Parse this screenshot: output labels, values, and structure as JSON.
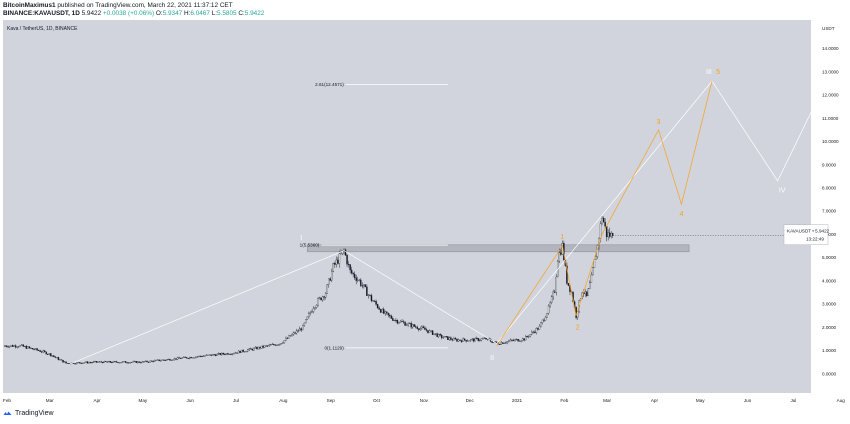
{
  "header": {
    "line1_user": "BitcoinMaximus1",
    "line1_text": " published on TradingView.com, March 22, 2021 11:37:12 CET",
    "line2_symbol": "BINANCE:KAVAUSDT, 1D",
    "line2_last": "5.9422",
    "line2_change": "+0.0038 (+0.06%)",
    "line2_o_label": "O:",
    "line2_o": "5.9347",
    "line2_h_label": "H:",
    "line2_h": "6.0467",
    "line2_l_label": "L:",
    "line2_l": "5.5805",
    "line2_c_label": "C:",
    "line2_c": "5.9422"
  },
  "footer": {
    "brand": "TradingView"
  },
  "chart_data": {
    "type": "candlestick",
    "symbol_label": "Kava / TetherUS, 1D, BINANCE",
    "currency": "USDT",
    "y_ticks": [
      "0.0000",
      "1.0000",
      "2.0000",
      "3.0000",
      "4.0000",
      "5.0000",
      "6.0000",
      "7.0000",
      "8.0000",
      "9.0000",
      "10.0000",
      "11.0000",
      "12.0000",
      "13.0000",
      "14.0000"
    ],
    "ylim": [
      -0.4,
      14.8
    ],
    "x_ticks": [
      "Feb",
      "Mar",
      "Apr",
      "May",
      "Jun",
      "Jul",
      "Aug",
      "Sep",
      "Oct",
      "Nov",
      "Dec",
      "2021",
      "Feb",
      "Mar",
      "Apr",
      "May",
      "Jun",
      "Jul",
      "Aug"
    ],
    "price_path": [
      [
        0,
        1.2
      ],
      [
        10,
        1.2
      ],
      [
        22,
        1.0
      ],
      [
        29,
        0.85
      ],
      [
        40,
        0.45
      ],
      [
        60,
        0.5
      ],
      [
        90,
        0.5
      ],
      [
        120,
        0.7
      ],
      [
        150,
        0.9
      ],
      [
        180,
        1.3
      ],
      [
        195,
        2.0
      ],
      [
        202,
        2.9
      ],
      [
        210,
        3.5
      ],
      [
        215,
        4.6
      ],
      [
        222,
        5.3
      ],
      [
        226,
        4.4
      ],
      [
        232,
        4.0
      ],
      [
        240,
        3.2
      ],
      [
        248,
        2.6
      ],
      [
        256,
        2.3
      ],
      [
        265,
        2.1
      ],
      [
        275,
        1.9
      ],
      [
        285,
        1.6
      ],
      [
        295,
        1.45
      ],
      [
        305,
        1.45
      ],
      [
        315,
        1.5
      ],
      [
        322,
        1.3
      ],
      [
        330,
        1.4
      ],
      [
        340,
        1.5
      ],
      [
        350,
        2.0
      ],
      [
        356,
        2.8
      ],
      [
        360,
        3.6
      ],
      [
        362,
        5.0
      ],
      [
        365,
        5.5
      ],
      [
        368,
        4.0
      ],
      [
        371,
        3.5
      ],
      [
        374,
        2.5
      ],
      [
        378,
        3.6
      ],
      [
        381,
        3.3
      ],
      [
        384,
        4.1
      ],
      [
        388,
        5.5
      ],
      [
        391,
        6.8
      ],
      [
        394,
        6.0
      ],
      [
        398,
        5.9422
      ]
    ],
    "last_price_label": "KAVAUSDT",
    "last_price": "5.9422",
    "countdown": "13:22:49",
    "fib_levels": [
      {
        "label": "2.61(12.4571)",
        "value": 12.4571
      },
      {
        "label": "1(5.5360)",
        "value": 5.536
      },
      {
        "label": "0(1.1129)",
        "value": 1.1129
      }
    ],
    "resistance_zone": [
      5.25,
      5.55
    ],
    "wave_counts": {
      "white": [
        "I",
        "II",
        "III",
        "IV"
      ],
      "orange": [
        "1",
        "2",
        "3",
        "4",
        "5"
      ]
    },
    "colors": {
      "background": "#d1d4dc",
      "candles": "#131722",
      "white_waves": "#ffffff",
      "orange_waves": "#f7a21b",
      "zone": "#b2b5be",
      "axis_text": "#131722"
    }
  }
}
